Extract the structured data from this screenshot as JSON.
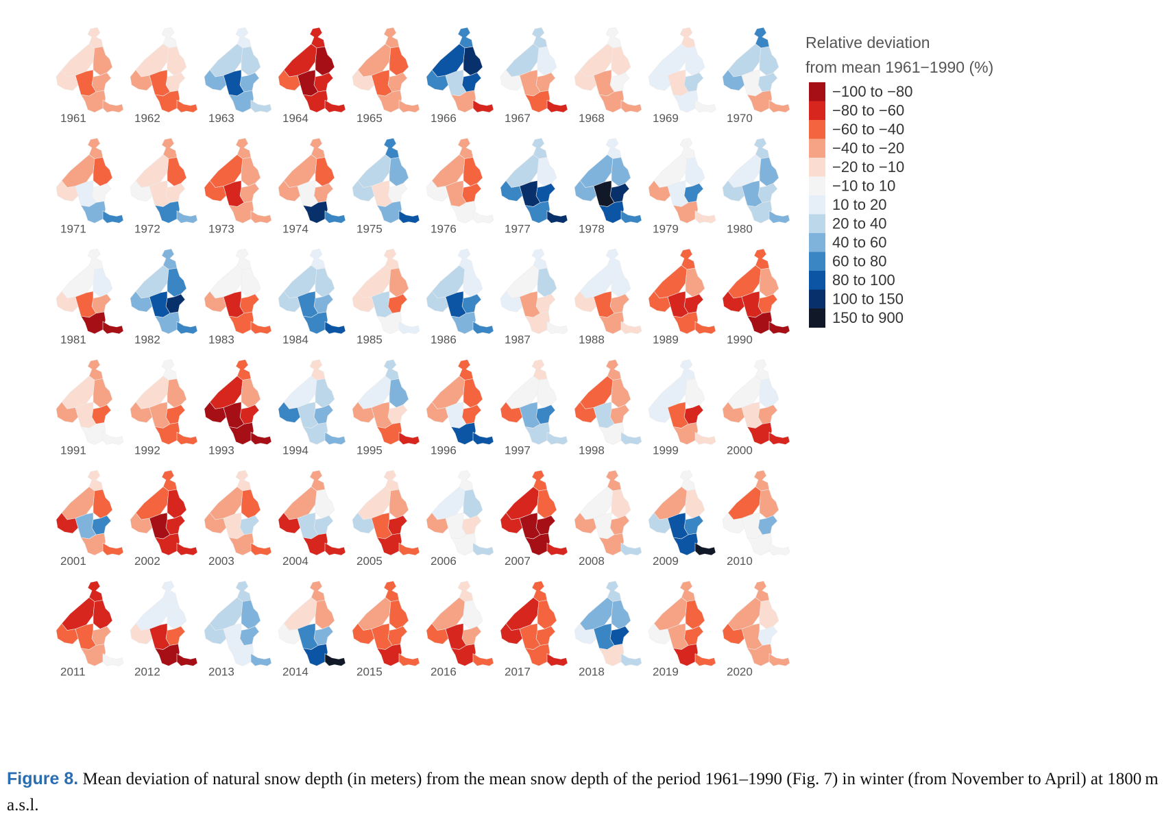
{
  "chart_data": {
    "type": "heatmap",
    "subtype": "small-multiple choropleth maps",
    "title": "",
    "legend": {
      "title_line1": "Relative deviation",
      "title_line2": "from mean 1961−1990 (%)",
      "placement": "right",
      "classes": [
        {
          "label": "−100 to −80",
          "color": "#a50f15"
        },
        {
          "label": "−80 to −60",
          "color": "#d7261e"
        },
        {
          "label": "−60 to −40",
          "color": "#f4643f"
        },
        {
          "label": "−40 to −20",
          "color": "#f6a385"
        },
        {
          "label": "−20 to −10",
          "color": "#fbdcd0"
        },
        {
          "label": "−10 to 10",
          "color": "#f4f4f4"
        },
        {
          "label": "10 to 20",
          "color": "#e6eff8"
        },
        {
          "label": "20 to 40",
          "color": "#bcd6ea"
        },
        {
          "label": "40 to 60",
          "color": "#7fb3dc"
        },
        {
          "label": "60 to 80",
          "color": "#3a86c4"
        },
        {
          "label": "80 to 100",
          "color": "#0b55a4"
        },
        {
          "label": "100 to 150",
          "color": "#08306b"
        },
        {
          "label": "150 to 900",
          "color": "#111827"
        }
      ]
    },
    "region_order": [
      "north",
      "upper-left",
      "upper-right",
      "middle-left",
      "middle-right",
      "center",
      "south",
      "tail"
    ],
    "years": [
      {
        "year": "1961",
        "classes": [
          4,
          4,
          3,
          4,
          3,
          2,
          3,
          3
        ]
      },
      {
        "year": "1962",
        "classes": [
          5,
          4,
          4,
          3,
          4,
          2,
          2,
          2
        ]
      },
      {
        "year": "1963",
        "classes": [
          6,
          7,
          7,
          8,
          8,
          10,
          8,
          7
        ]
      },
      {
        "year": "1964",
        "classes": [
          1,
          1,
          0,
          2,
          1,
          0,
          1,
          1
        ]
      },
      {
        "year": "1965",
        "classes": [
          3,
          3,
          2,
          4,
          3,
          2,
          3,
          3
        ]
      },
      {
        "year": "1966",
        "classes": [
          9,
          10,
          11,
          9,
          10,
          7,
          3,
          1
        ]
      },
      {
        "year": "1967",
        "classes": [
          7,
          7,
          6,
          5,
          3,
          3,
          2,
          1
        ]
      },
      {
        "year": "1968",
        "classes": [
          5,
          4,
          4,
          4,
          5,
          3,
          3,
          3
        ]
      },
      {
        "year": "1969",
        "classes": [
          4,
          6,
          6,
          6,
          7,
          4,
          6,
          5
        ]
      },
      {
        "year": "1970",
        "classes": [
          9,
          7,
          7,
          8,
          7,
          5,
          3,
          3
        ]
      },
      {
        "year": "1971",
        "classes": [
          3,
          3,
          2,
          4,
          5,
          6,
          8,
          9
        ]
      },
      {
        "year": "1972",
        "classes": [
          3,
          4,
          2,
          5,
          4,
          4,
          9,
          8
        ]
      },
      {
        "year": "1973",
        "classes": [
          3,
          2,
          3,
          2,
          3,
          1,
          3,
          3
        ]
      },
      {
        "year": "1974",
        "classes": [
          3,
          3,
          2,
          3,
          3,
          5,
          11,
          9
        ]
      },
      {
        "year": "1975",
        "classes": [
          9,
          7,
          8,
          7,
          5,
          4,
          8,
          10
        ]
      },
      {
        "year": "1976",
        "classes": [
          3,
          3,
          2,
          5,
          2,
          3,
          5,
          5
        ]
      },
      {
        "year": "1977",
        "classes": [
          7,
          7,
          6,
          9,
          10,
          11,
          9,
          11
        ]
      },
      {
        "year": "1978",
        "classes": [
          6,
          8,
          8,
          8,
          11,
          12,
          10,
          9
        ]
      },
      {
        "year": "1979",
        "classes": [
          5,
          5,
          6,
          3,
          9,
          6,
          3,
          4
        ]
      },
      {
        "year": "1980",
        "classes": [
          7,
          6,
          8,
          7,
          7,
          8,
          7,
          8
        ]
      },
      {
        "year": "1981",
        "classes": [
          5,
          5,
          6,
          4,
          3,
          2,
          0,
          0
        ]
      },
      {
        "year": "1982",
        "classes": [
          8,
          7,
          9,
          8,
          11,
          10,
          8,
          9
        ]
      },
      {
        "year": "1983",
        "classes": [
          5,
          5,
          5,
          3,
          2,
          1,
          2,
          2
        ]
      },
      {
        "year": "1984",
        "classes": [
          6,
          7,
          7,
          7,
          8,
          9,
          9,
          10
        ]
      },
      {
        "year": "1985",
        "classes": [
          4,
          4,
          3,
          4,
          2,
          7,
          5,
          6
        ]
      },
      {
        "year": "1986",
        "classes": [
          6,
          7,
          6,
          7,
          9,
          10,
          8,
          9
        ]
      },
      {
        "year": "1987",
        "classes": [
          6,
          5,
          7,
          6,
          4,
          3,
          4,
          5
        ]
      },
      {
        "year": "1988",
        "classes": [
          6,
          6,
          6,
          4,
          3,
          2,
          3,
          4
        ]
      },
      {
        "year": "1989",
        "classes": [
          2,
          2,
          3,
          2,
          1,
          1,
          2,
          2
        ]
      },
      {
        "year": "1990",
        "classes": [
          2,
          2,
          3,
          1,
          2,
          1,
          0,
          0
        ]
      },
      {
        "year": "1991",
        "classes": [
          3,
          4,
          3,
          3,
          2,
          4,
          5,
          5
        ]
      },
      {
        "year": "1992",
        "classes": [
          5,
          4,
          3,
          3,
          2,
          3,
          2,
          2
        ]
      },
      {
        "year": "1993",
        "classes": [
          2,
          1,
          3,
          0,
          1,
          0,
          0,
          0
        ]
      },
      {
        "year": "1994",
        "classes": [
          4,
          6,
          7,
          9,
          8,
          7,
          7,
          8
        ]
      },
      {
        "year": "1995",
        "classes": [
          7,
          6,
          8,
          3,
          4,
          3,
          2,
          1
        ]
      },
      {
        "year": "1996",
        "classes": [
          2,
          3,
          2,
          3,
          2,
          6,
          10,
          10
        ]
      },
      {
        "year": "1997",
        "classes": [
          4,
          5,
          5,
          2,
          9,
          8,
          7,
          7
        ]
      },
      {
        "year": "1998",
        "classes": [
          3,
          2,
          3,
          2,
          3,
          7,
          5,
          7
        ]
      },
      {
        "year": "1999",
        "classes": [
          6,
          6,
          5,
          6,
          1,
          2,
          3,
          4
        ]
      },
      {
        "year": "2000",
        "classes": [
          5,
          5,
          6,
          3,
          3,
          4,
          1,
          1
        ]
      },
      {
        "year": "2001",
        "classes": [
          4,
          3,
          2,
          1,
          9,
          8,
          3,
          2
        ]
      },
      {
        "year": "2002",
        "classes": [
          2,
          2,
          1,
          3,
          1,
          0,
          1,
          1
        ]
      },
      {
        "year": "2003",
        "classes": [
          4,
          3,
          2,
          3,
          7,
          4,
          3,
          2
        ]
      },
      {
        "year": "2004",
        "classes": [
          3,
          3,
          5,
          1,
          7,
          7,
          1,
          1
        ]
      },
      {
        "year": "2005",
        "classes": [
          4,
          4,
          3,
          7,
          1,
          2,
          1,
          2
        ]
      },
      {
        "year": "2006",
        "classes": [
          5,
          6,
          7,
          3,
          4,
          5,
          5,
          7
        ]
      },
      {
        "year": "2007",
        "classes": [
          2,
          1,
          2,
          1,
          0,
          0,
          0,
          1
        ]
      },
      {
        "year": "2008",
        "classes": [
          3,
          5,
          4,
          3,
          3,
          5,
          3,
          7
        ]
      },
      {
        "year": "2009",
        "classes": [
          5,
          3,
          4,
          7,
          9,
          10,
          10,
          12
        ]
      },
      {
        "year": "2010",
        "classes": [
          3,
          2,
          3,
          5,
          8,
          5,
          5,
          5
        ]
      },
      {
        "year": "2011",
        "classes": [
          1,
          1,
          1,
          2,
          3,
          2,
          3,
          5
        ]
      },
      {
        "year": "2012",
        "classes": [
          6,
          6,
          6,
          4,
          2,
          1,
          0,
          0
        ]
      },
      {
        "year": "2013",
        "classes": [
          7,
          7,
          8,
          7,
          8,
          6,
          6,
          8
        ]
      },
      {
        "year": "2014",
        "classes": [
          3,
          4,
          3,
          5,
          8,
          9,
          10,
          12
        ]
      },
      {
        "year": "2015",
        "classes": [
          2,
          3,
          2,
          2,
          2,
          2,
          1,
          2
        ]
      },
      {
        "year": "2016",
        "classes": [
          4,
          3,
          5,
          2,
          3,
          1,
          1,
          2
        ]
      },
      {
        "year": "2017",
        "classes": [
          2,
          1,
          2,
          1,
          2,
          2,
          2,
          1
        ]
      },
      {
        "year": "2018",
        "classes": [
          7,
          8,
          8,
          6,
          10,
          9,
          4,
          7
        ]
      },
      {
        "year": "2019",
        "classes": [
          3,
          3,
          2,
          5,
          2,
          3,
          1,
          2
        ]
      },
      {
        "year": "2020",
        "classes": [
          3,
          3,
          4,
          2,
          6,
          3,
          3,
          3
        ]
      }
    ],
    "grid": {
      "columns": 10,
      "rows": 6
    }
  },
  "caption": {
    "figure_number": "Figure 8.",
    "text": " Mean deviation of natural snow depth (in meters) from the mean snow depth of the period 1961–1990 (Fig. 7) in winter (from November to April) at 1800 m a.s.l."
  }
}
